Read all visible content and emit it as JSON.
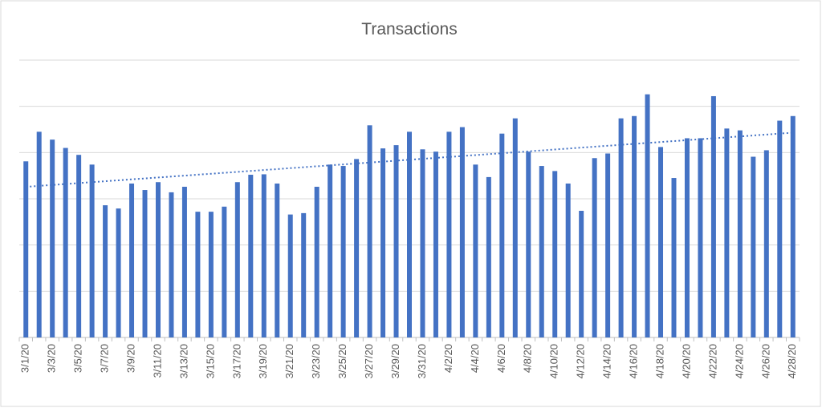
{
  "chart_data": {
    "type": "bar",
    "title": "Transactions",
    "categories": [
      "3/1/20",
      null,
      "3/3/20",
      null,
      "3/5/20",
      null,
      "3/7/20",
      null,
      "3/9/20",
      null,
      "3/11/20",
      null,
      "3/13/20",
      null,
      "3/15/20",
      null,
      "3/17/20",
      null,
      "3/19/20",
      null,
      "3/21/20",
      null,
      "3/23/20",
      null,
      "3/25/20",
      null,
      "3/27/20",
      null,
      "3/29/20",
      null,
      "3/31/20",
      null,
      "4/2/20",
      null,
      "4/4/20",
      null,
      "4/6/20",
      null,
      "4/8/20",
      null,
      "4/10/20",
      null,
      "4/12/20",
      null,
      "4/14/20",
      null,
      "4/16/20",
      null,
      "4/18/20",
      null,
      "4/20/20",
      null,
      "4/22/20",
      null,
      "4/24/20",
      null,
      "4/26/20",
      null,
      "4/28/20"
    ],
    "values": [
      3.81,
      4.45,
      4.28,
      4.1,
      3.95,
      3.74,
      2.86,
      2.79,
      3.33,
      3.19,
      3.36,
      3.14,
      3.26,
      2.72,
      2.72,
      2.83,
      3.36,
      3.52,
      3.53,
      3.33,
      2.66,
      2.69,
      3.26,
      3.74,
      3.71,
      3.86,
      4.59,
      4.09,
      4.16,
      4.45,
      4.07,
      4.02,
      4.45,
      4.55,
      3.74,
      3.47,
      4.41,
      4.74,
      4.02,
      3.71,
      3.6,
      3.33,
      2.74,
      3.88,
      3.98,
      4.74,
      4.79,
      5.26,
      4.12,
      3.45,
      4.31,
      4.31,
      5.22,
      4.52,
      4.48,
      3.91,
      4.05,
      4.69,
      4.79
    ],
    "color": "#4472c4",
    "ylim": [
      0,
      6
    ],
    "gridlines": [
      1,
      2,
      3,
      4,
      5,
      6
    ],
    "trendline": "linear"
  }
}
